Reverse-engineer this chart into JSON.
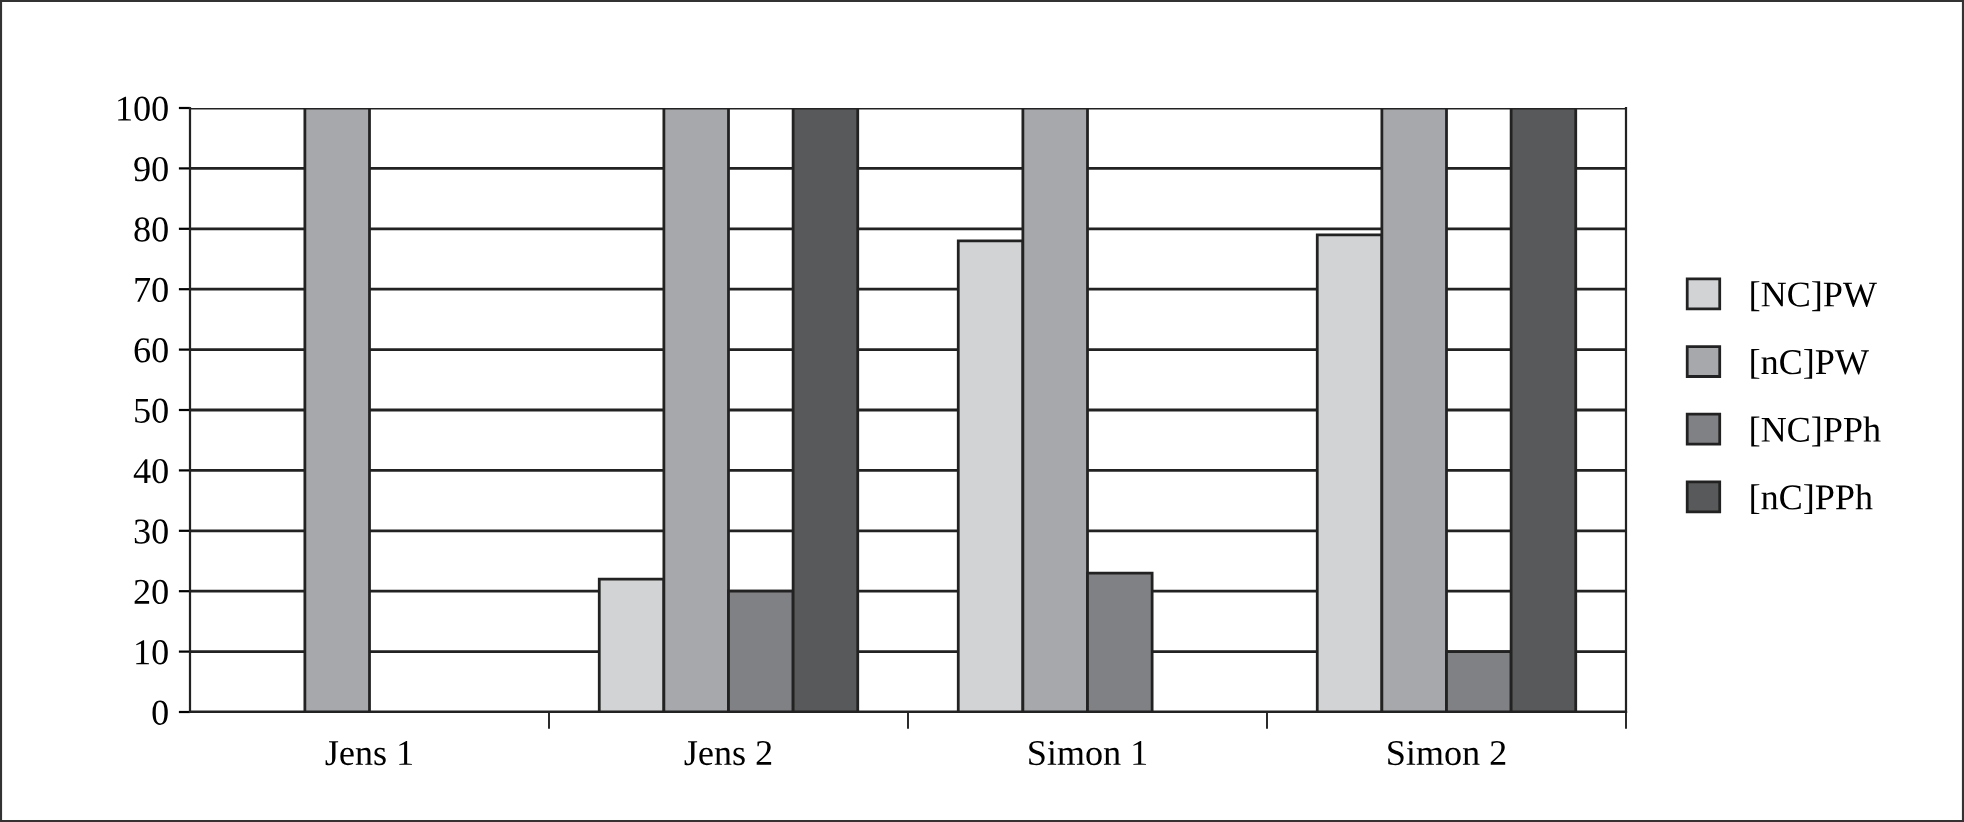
{
  "chart_data": {
    "type": "bar",
    "categories": [
      "Jens 1",
      "Jens 2",
      "Simon 1",
      "Simon 2"
    ],
    "series": [
      {
        "name": "[NC]PW",
        "color": "#d2d3d5",
        "values": [
          null,
          22,
          78,
          79
        ]
      },
      {
        "name": "[nC]PW",
        "color": "#a7a8ab",
        "values": [
          100,
          100,
          100,
          100
        ]
      },
      {
        "name": "[NC]PPh",
        "color": "#808184",
        "values": [
          null,
          20,
          23,
          10
        ]
      },
      {
        "name": "[nC]PPh",
        "color": "#58595b",
        "values": [
          null,
          100,
          null,
          100
        ]
      }
    ],
    "ylim": [
      0,
      100
    ],
    "yticks": [
      0,
      10,
      20,
      30,
      40,
      50,
      60,
      70,
      80,
      90,
      100
    ],
    "grid": "y",
    "legend": "right"
  }
}
